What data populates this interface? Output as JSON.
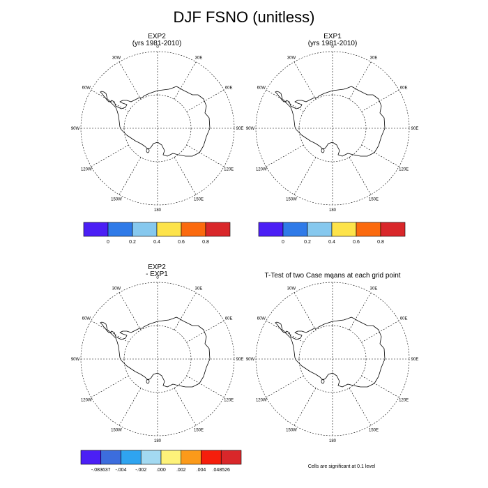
{
  "title": "DJF FSNO (unitless)",
  "footnote": "Cells are significant at 0.1 level",
  "lon_labels": [
    "0",
    "30E",
    "60E",
    "90E",
    "120E",
    "150E",
    "180",
    "150W",
    "120W",
    "90W",
    "60W",
    "30W"
  ],
  "panels": [
    {
      "title_lines": [
        "EXP2",
        "(yrs 1981-2010)"
      ]
    },
    {
      "title_lines": [
        "EXP1",
        "(yrs 1981-2010)"
      ]
    },
    {
      "title_lines": [
        "EXP2",
        "- EXP1"
      ]
    },
    {
      "title_lines": [
        "T-Test of two Case means at each grid point"
      ]
    }
  ],
  "colorbars": [
    {
      "colors": [
        "#4b1ff5",
        "#2f7ae8",
        "#86c8ee",
        "#fde34a",
        "#fb6a0e",
        "#d9272a"
      ],
      "labels": [
        "0",
        "0.2",
        "0.4",
        "0.6",
        "0.8"
      ]
    },
    {
      "colors": [
        "#4b1ff5",
        "#2f7ae8",
        "#86c8ee",
        "#fde34a",
        "#fb6a0e",
        "#d9272a"
      ],
      "labels": [
        "0",
        "0.2",
        "0.4",
        "0.6",
        "0.8"
      ]
    },
    {
      "colors": [
        "#4b1ff5",
        "#3c6ddd",
        "#2fa4f0",
        "#a3d9f1",
        "#fdf27a",
        "#fb9a1a",
        "#f51e0c",
        "#d9272a"
      ],
      "labels": [
        "-.083637",
        "-.004",
        "-.002",
        ".000",
        ".002",
        ".004",
        ".048526"
      ]
    }
  ]
}
